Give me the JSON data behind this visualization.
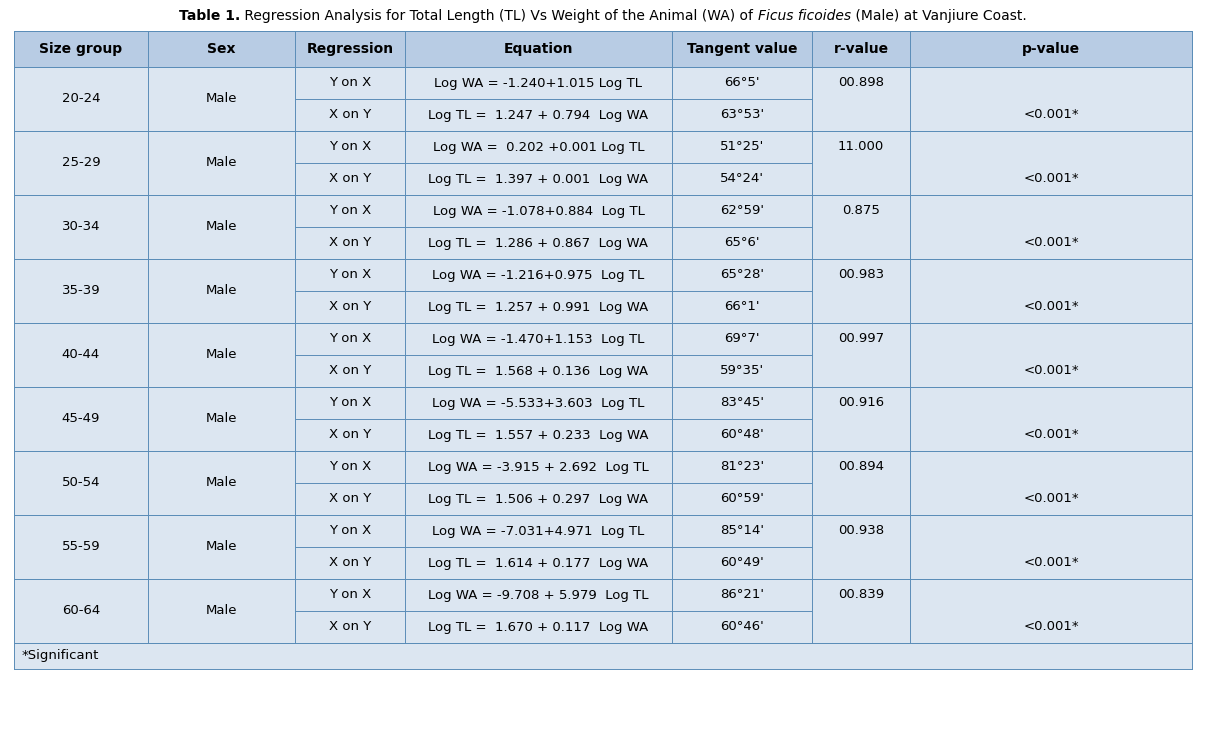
{
  "title_bold": "Table 1.",
  "title_normal": " Regression Analysis for Total Length (TL) Vs Weight of the Animal (WA) of ",
  "title_italic": "Ficus ficoides",
  "title_end": " (Male) at Vanjiure Coast.",
  "headers": [
    "Size group",
    "Sex",
    "Regression",
    "Equation",
    "Tangent value",
    "r-value",
    "p-value"
  ],
  "rows": [
    {
      "size_group": "20-24",
      "sex": "Male",
      "regression1": "Y on X",
      "equation1": "Log WA = -1.240+1.015 Log TL",
      "tangent1": "66°5'",
      "regression2": "X on Y",
      "equation2": "Log TL =  1.247 + 0.794  Log WA",
      "tangent2": "63°53'",
      "r_value": "00.898",
      "p_value": "<0.001*"
    },
    {
      "size_group": "25-29",
      "sex": "Male",
      "regression1": "Y on X",
      "equation1": "Log WA =  0.202 +0.001 Log TL",
      "tangent1": "51°25'",
      "regression2": "X on Y",
      "equation2": "Log TL =  1.397 + 0.001  Log WA",
      "tangent2": "54°24'",
      "r_value": "11.000",
      "p_value": "<0.001*"
    },
    {
      "size_group": "30-34",
      "sex": "Male",
      "regression1": "Y on X",
      "equation1": "Log WA = -1.078+0.884  Log TL",
      "tangent1": "62°59'",
      "regression2": "X on Y",
      "equation2": "Log TL =  1.286 + 0.867  Log WA",
      "tangent2": "65°6'",
      "r_value": "0.875",
      "p_value": "<0.001*"
    },
    {
      "size_group": "35-39",
      "sex": "Male",
      "regression1": "Y on X",
      "equation1": "Log WA = -1.216+0.975  Log TL",
      "tangent1": "65°28'",
      "regression2": "X on Y",
      "equation2": "Log TL =  1.257 + 0.991  Log WA",
      "tangent2": "66°1'",
      "r_value": "00.983",
      "p_value": "<0.001*"
    },
    {
      "size_group": "40-44",
      "sex": "Male",
      "regression1": "Y on X",
      "equation1": "Log WA = -1.470+1.153  Log TL",
      "tangent1": "69°7'",
      "regression2": "X on Y",
      "equation2": "Log TL =  1.568 + 0.136  Log WA",
      "tangent2": "59°35'",
      "r_value": "00.997",
      "p_value": "<0.001*"
    },
    {
      "size_group": "45-49",
      "sex": "Male",
      "regression1": "Y on X",
      "equation1": "Log WA = -5.533+3.603  Log TL",
      "tangent1": "83°45'",
      "regression2": "X on Y",
      "equation2": "Log TL =  1.557 + 0.233  Log WA",
      "tangent2": "60°48'",
      "r_value": "00.916",
      "p_value": "<0.001*"
    },
    {
      "size_group": "50-54",
      "sex": "Male",
      "regression1": "Y on X",
      "equation1": "Log WA = -3.915 + 2.692  Log TL",
      "tangent1": "81°23'",
      "regression2": "X on Y",
      "equation2": "Log TL =  1.506 + 0.297  Log WA",
      "tangent2": "60°59'",
      "r_value": "00.894",
      "p_value": "<0.001*"
    },
    {
      "size_group": "55-59",
      "sex": "Male",
      "regression1": "Y on X",
      "equation1": "Log WA = -7.031+4.971  Log TL",
      "tangent1": "85°14'",
      "regression2": "X on Y",
      "equation2": "Log TL =  1.614 + 0.177  Log WA",
      "tangent2": "60°49'",
      "r_value": "00.938",
      "p_value": "<0.001*"
    },
    {
      "size_group": "60-64",
      "sex": "Male",
      "regression1": "Y on X",
      "equation1": "Log WA = -9.708 + 5.979  Log TL",
      "tangent1": "86°21'",
      "regression2": "X on Y",
      "equation2": "Log TL =  1.670 + 0.117  Log WA",
      "tangent2": "60°46'",
      "r_value": "00.839",
      "p_value": "<0.001*"
    }
  ],
  "footer": "*Significant",
  "header_bg": "#b8cce4",
  "cell_bg": "#dce6f1",
  "border_color": "#5b8db8",
  "header_font_size": 10,
  "cell_font_size": 9.5,
  "title_font_size": 10
}
